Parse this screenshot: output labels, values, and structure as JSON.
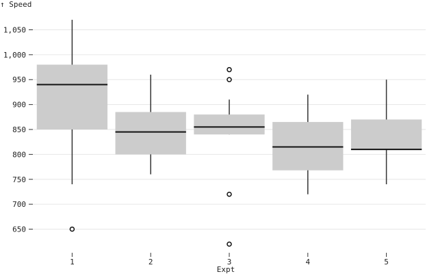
{
  "chart_data": {
    "type": "boxplot",
    "ylabel": "↑ Speed",
    "xlabel": "Expt",
    "ylim": [
      615,
      1085
    ],
    "yticks": [
      650,
      700,
      750,
      800,
      850,
      900,
      950,
      1000,
      1050
    ],
    "ytick_labels": [
      "650",
      "700",
      "750",
      "800",
      "850",
      "900",
      "950",
      "1,000",
      "1,050"
    ],
    "categories": [
      "1",
      "2",
      "3",
      "4",
      "5"
    ],
    "grid": true,
    "boxes": [
      {
        "category": "1",
        "whisker_low": 740,
        "q1": 850,
        "median": 940,
        "q3": 980,
        "whisker_high": 1070,
        "outliers": [
          650
        ]
      },
      {
        "category": "2",
        "whisker_low": 760,
        "q1": 800,
        "median": 845,
        "q3": 885,
        "whisker_high": 960,
        "outliers": []
      },
      {
        "category": "3",
        "whisker_low": 840,
        "q1": 840,
        "median": 855,
        "q3": 880,
        "whisker_high": 910,
        "outliers": [
          620,
          720,
          950,
          970
        ]
      },
      {
        "category": "4",
        "whisker_low": 720,
        "q1": 768,
        "median": 815,
        "q3": 865,
        "whisker_high": 920,
        "outliers": []
      },
      {
        "category": "5",
        "whisker_low": 740,
        "q1": 810,
        "median": 810,
        "q3": 870,
        "whisker_high": 950,
        "outliers": []
      }
    ],
    "colors": {
      "box": "#cccccc",
      "median": "#111111",
      "whisker": "#333333",
      "grid": "#e6e6e6",
      "outlier": "#111111"
    }
  }
}
